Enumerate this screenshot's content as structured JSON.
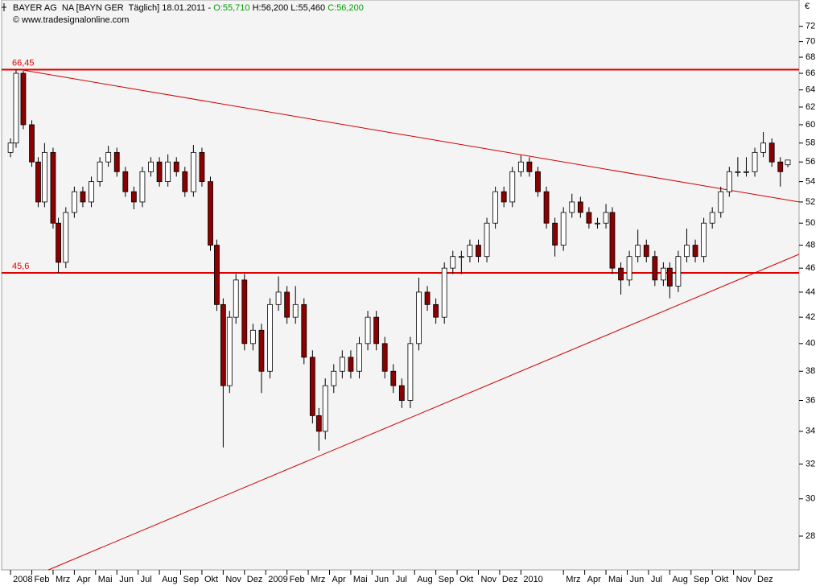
{
  "chart_data": {
    "type": "candlestick",
    "header": [
      {
        "text": "BAYER AG  NA [BAYN GER  Täglich] 18.01.2011 -",
        "color": "#000000"
      },
      {
        "text": "O:55,710",
        "color": "#00a000"
      },
      {
        "text": "H:56,200 L:55,460",
        "color": "#000000"
      },
      {
        "text": "C:56,200",
        "color": "#00a000"
      }
    ],
    "copyright": "© www.tradesignalonline.com",
    "currency": "€",
    "log_scale": true,
    "up_color": "#ffffff",
    "down_color": "#8b0000",
    "xlim": [
      -0.42,
      37.08
    ],
    "ylim": [
      26.3,
      75.6
    ],
    "yticks": [
      28,
      30,
      32,
      34,
      36,
      38,
      40,
      42,
      44,
      46,
      48,
      50,
      52,
      54,
      56,
      58,
      60,
      62,
      64,
      66,
      68,
      70,
      72
    ],
    "xticks": [
      {
        "value": 0,
        "label": "2008"
      },
      {
        "value": 1,
        "label": "Feb"
      },
      {
        "value": 2,
        "label": "Mrz"
      },
      {
        "value": 3,
        "label": "Apr"
      },
      {
        "value": 4,
        "label": "Mai"
      },
      {
        "value": 5,
        "label": "Jun"
      },
      {
        "value": 6,
        "label": "Jul"
      },
      {
        "value": 7,
        "label": "Aug"
      },
      {
        "value": 8,
        "label": "Sep"
      },
      {
        "value": 9,
        "label": "Okt"
      },
      {
        "value": 10,
        "label": "Nov"
      },
      {
        "value": 11,
        "label": "Dez"
      },
      {
        "value": 12,
        "label": "2009"
      },
      {
        "value": 13,
        "label": "Feb"
      },
      {
        "value": 14,
        "label": "Mrz"
      },
      {
        "value": 15,
        "label": "Apr"
      },
      {
        "value": 16,
        "label": "Mai"
      },
      {
        "value": 17,
        "label": "Jun"
      },
      {
        "value": 18,
        "label": "Jul"
      },
      {
        "value": 19,
        "label": "Aug"
      },
      {
        "value": 20,
        "label": "Sep"
      },
      {
        "value": 21,
        "label": "Okt"
      },
      {
        "value": 22,
        "label": "Nov"
      },
      {
        "value": 23,
        "label": "Dez"
      },
      {
        "value": 24,
        "label": "2010"
      },
      {
        "value": 26,
        "label": "Mrz"
      },
      {
        "value": 27,
        "label": "Apr"
      },
      {
        "value": 28,
        "label": "Mai"
      },
      {
        "value": 29,
        "label": "Jun"
      },
      {
        "value": 30,
        "label": "Jul"
      },
      {
        "value": 31,
        "label": "Aug"
      },
      {
        "value": 32,
        "label": "Sep"
      },
      {
        "value": 33,
        "label": "Okt"
      },
      {
        "value": 34,
        "label": "Nov"
      },
      {
        "value": 35,
        "label": "Dez"
      }
    ],
    "levels": [
      {
        "value": 66.45,
        "label": "66,45",
        "color": "#e00000"
      },
      {
        "value": 45.6,
        "label": "45,6",
        "color": "#e00000"
      }
    ],
    "trendlines": [
      {
        "x": [
          0.45,
          37.08
        ],
        "y": [
          66.45,
          52
        ],
        "color": "#d00000"
      },
      {
        "x": [
          1.78,
          37.08
        ],
        "y": [
          26.3,
          47.2
        ],
        "color": "#d00000"
      }
    ],
    "x": [
      0,
      0.26,
      0.6,
      1.0,
      1.3,
      1.6,
      2.0,
      2.25,
      2.6,
      3.0,
      3.4,
      3.8,
      4.2,
      4.6,
      5.0,
      5.4,
      5.8,
      6.2,
      6.6,
      7.0,
      7.4,
      7.8,
      8.2,
      8.6,
      9.0,
      9.4,
      9.7,
      10.0,
      10.3,
      10.6,
      11.0,
      11.4,
      11.8,
      12.2,
      12.6,
      13.0,
      13.4,
      13.8,
      14.2,
      14.5,
      14.8,
      15.2,
      15.6,
      16.0,
      16.4,
      16.8,
      17.2,
      17.6,
      18.0,
      18.4,
      18.8,
      19.2,
      19.6,
      20.0,
      20.4,
      20.8,
      21.2,
      21.6,
      22.0,
      22.4,
      22.8,
      23.2,
      23.6,
      24.0,
      24.4,
      24.8,
      25.2,
      25.6,
      26.0,
      26.4,
      26.8,
      27.2,
      27.6,
      28.0,
      28.3,
      28.7,
      29.1,
      29.5,
      29.9,
      30.3,
      30.7,
      31.0,
      31.4,
      31.8,
      32.2,
      32.6,
      33.0,
      33.4,
      33.8,
      34.2,
      34.6,
      35.0,
      35.4,
      35.8,
      36.2,
      36.55
    ],
    "open": [
      57,
      58,
      66,
      60,
      56,
      52,
      57,
      50,
      46.5,
      51,
      53,
      52,
      54,
      56,
      57,
      55,
      53,
      52,
      55,
      56,
      54,
      56,
      55,
      53,
      57,
      54,
      48,
      43,
      37,
      42,
      45,
      40,
      41,
      38,
      43,
      44,
      42,
      43,
      39,
      35,
      34,
      37,
      38,
      39,
      38,
      40,
      42,
      40,
      38,
      37,
      36,
      40,
      44,
      43,
      42,
      46,
      47,
      47,
      48,
      47,
      50,
      53,
      52,
      55,
      56,
      55,
      53,
      50,
      48,
      51,
      52,
      51,
      50,
      50,
      51,
      46,
      45,
      47,
      48,
      47,
      45,
      46,
      44.5,
      47,
      48,
      47,
      50,
      51,
      53,
      55,
      55,
      55,
      57,
      58,
      56,
      55.71
    ],
    "high": [
      58.5,
      66.45,
      66.3,
      60.5,
      56.5,
      58,
      57.5,
      50.5,
      51.5,
      53.5,
      53.5,
      54.5,
      56.5,
      57.7,
      57.5,
      55.5,
      53.5,
      55.5,
      56.5,
      56.5,
      56.8,
      56.5,
      55.5,
      57.8,
      57.5,
      54.5,
      48.5,
      43.5,
      42.5,
      45.5,
      45.5,
      41.5,
      41.5,
      43.5,
      45.3,
      44.5,
      44.5,
      43.5,
      39.5,
      35.5,
      37.5,
      38.5,
      39.5,
      39.5,
      40.5,
      42.5,
      42.5,
      40.5,
      38.5,
      37.5,
      40.5,
      45.2,
      44.5,
      43.5,
      46.5,
      47.5,
      47.5,
      48.5,
      48.5,
      50.5,
      53.5,
      53.5,
      55.5,
      56.7,
      56.5,
      55.5,
      53.5,
      50.5,
      51.5,
      52.8,
      52.5,
      51.5,
      50.5,
      51.8,
      51.5,
      46.5,
      47.5,
      49.4,
      48.5,
      47.5,
      46.5,
      46.5,
      47.5,
      49.5,
      48.5,
      50.5,
      51.5,
      53.5,
      55.5,
      56.5,
      56.5,
      57.5,
      59.2,
      58.5,
      56.5,
      56.2
    ],
    "low": [
      56.5,
      57.5,
      59.5,
      55.5,
      51.5,
      51.5,
      49.5,
      45.6,
      46,
      50.5,
      51.5,
      51.5,
      53.5,
      55.5,
      54.5,
      52.5,
      51.3,
      51.5,
      54.5,
      53.5,
      53.5,
      54.5,
      52.5,
      52.5,
      53.5,
      47.5,
      42.5,
      33,
      36.5,
      41.5,
      39.5,
      39.5,
      36.5,
      37.5,
      42.5,
      41.5,
      41.5,
      38.5,
      34.5,
      32.8,
      33.5,
      36.5,
      37.5,
      37.5,
      37.5,
      39.5,
      39.5,
      37.5,
      36.5,
      35.5,
      35.5,
      39.5,
      42.5,
      41.5,
      41.5,
      45.5,
      45.5,
      46.5,
      46.5,
      46.5,
      49.5,
      51.5,
      51.5,
      54.5,
      54.5,
      52.5,
      49.5,
      47,
      47.5,
      50.5,
      50.5,
      49.5,
      49.5,
      49.5,
      45.5,
      43.8,
      44.5,
      46.5,
      46.5,
      44.5,
      44.5,
      43.5,
      44,
      46.5,
      46.5,
      46.5,
      49.5,
      50.5,
      52.5,
      54.5,
      54.5,
      54.5,
      56.5,
      55.5,
      53.5,
      55.46
    ],
    "close": [
      58,
      66,
      60,
      56,
      52,
      57,
      50,
      46.5,
      51,
      53,
      52,
      54,
      56,
      57,
      55,
      53,
      52,
      55,
      56,
      54,
      56,
      55,
      53,
      57,
      54,
      48,
      43,
      37,
      42,
      45,
      40,
      41,
      38,
      43,
      44,
      42,
      43,
      39,
      35,
      34,
      37,
      38,
      39,
      38,
      40,
      42,
      40,
      38,
      37,
      36,
      40,
      44,
      43,
      42,
      46,
      47,
      47,
      48,
      47,
      50,
      53,
      52,
      55,
      56,
      55,
      53,
      50,
      48,
      51,
      52,
      51,
      50,
      50,
      51,
      46,
      45,
      47,
      48,
      47,
      45,
      46,
      44.5,
      47,
      48,
      47,
      50,
      51,
      53,
      55,
      55,
      55,
      57,
      58,
      56,
      55,
      56.2
    ]
  }
}
